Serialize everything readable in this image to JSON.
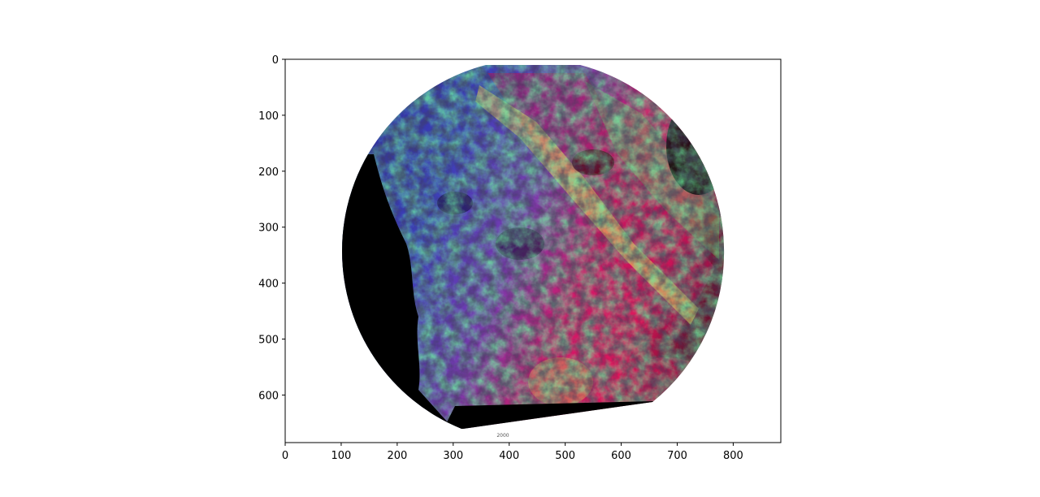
{
  "figure": {
    "image_name": "false-color-satellite-image",
    "axes": {
      "x_ticks": [
        "0",
        "100",
        "200",
        "300",
        "400",
        "500",
        "600",
        "700",
        "800"
      ],
      "y_ticks": [
        "0",
        "100",
        "200",
        "300",
        "400",
        "500",
        "600"
      ],
      "x_tick_values": [
        0,
        100,
        200,
        300,
        400,
        500,
        600,
        700,
        800
      ],
      "y_tick_values": [
        0,
        100,
        200,
        300,
        400,
        500,
        600
      ],
      "xlim": [
        0,
        885
      ],
      "ylim": [
        685,
        0
      ]
    },
    "inset_label": "2000",
    "colors": {
      "frame": "#000000",
      "background": "#ffffff",
      "ocean": "#000000",
      "vegetation_red": "#e0145a",
      "vegetation_green": "#66f05a",
      "terrain_blue": "#3a3ab8"
    }
  }
}
